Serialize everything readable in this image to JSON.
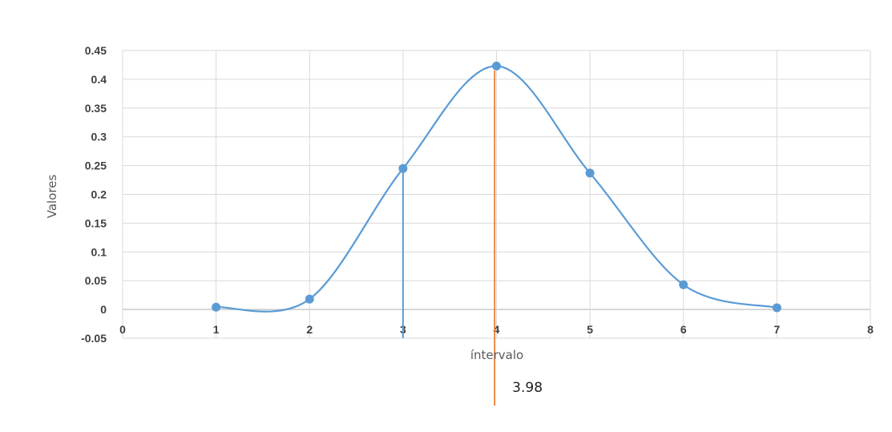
{
  "chart_data": {
    "type": "scatter",
    "title": "",
    "xlabel": "íntervalo",
    "ylabel": "Valores",
    "xlim": [
      0,
      8
    ],
    "ylim": [
      -0.05,
      0.45
    ],
    "x_ticks": [
      "0",
      "1",
      "2",
      "3",
      "4",
      "5",
      "6",
      "7",
      "8"
    ],
    "y_ticks": [
      "0.45",
      "0.4",
      "0.35",
      "0.3",
      "0.25",
      "0.2",
      "0.15",
      "0.1",
      "0.05",
      "0",
      "-0.05"
    ],
    "grid": true,
    "legend": "none",
    "series": [
      {
        "style": "smooth-line-markers",
        "color": "#5b9bd5",
        "x": [
          1,
          2,
          3,
          4,
          5,
          6,
          7
        ],
        "y": [
          0.004,
          0.018,
          0.245,
          0.423,
          0.237,
          0.043,
          0.003
        ]
      }
    ],
    "annotations": {
      "drop_line": {
        "x": 3,
        "y_from": -0.05,
        "y_to": 0.245,
        "color": "#5b9bd5"
      },
      "marker_line": {
        "x": 3.98,
        "color": "#ed7d31",
        "label": "3.98"
      }
    }
  }
}
